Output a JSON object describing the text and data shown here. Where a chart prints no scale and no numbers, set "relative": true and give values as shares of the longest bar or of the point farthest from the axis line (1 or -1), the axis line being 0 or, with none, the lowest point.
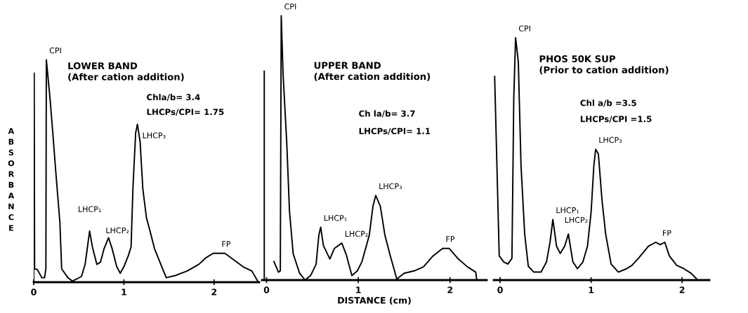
{
  "chart_data": [
    {
      "type": "line",
      "relative": true,
      "title": "LOWER BAND\n(After cation addition)",
      "ylabel": "ABSORBANCE",
      "xlim": [
        0,
        2.5
      ],
      "xticks": [
        0,
        1,
        2
      ],
      "grid": false,
      "series": [
        {
          "color": "#000000",
          "x": [
            0.0,
            0.005,
            0.01,
            0.04,
            0.09,
            0.12,
            0.135,
            0.14,
            0.18,
            0.21,
            0.25,
            0.29,
            0.31,
            0.38,
            0.43,
            0.48,
            0.53,
            0.57,
            0.6,
            0.62,
            0.65,
            0.7,
            0.74,
            0.78,
            0.83,
            0.87,
            0.92,
            0.96,
            1.0,
            1.05,
            1.08,
            1.1,
            1.13,
            1.15,
            1.18,
            1.21,
            1.25,
            1.29,
            1.34,
            1.42,
            1.47,
            1.57,
            1.7,
            1.83,
            1.91,
            1.99,
            2.12,
            2.22,
            2.32,
            2.42,
            2.49
          ],
          "values": [
            0,
            0.94,
            0.06,
            0.057,
            0.02,
            0.02,
            0.06,
            1.0,
            0.83,
            0.68,
            0.47,
            0.27,
            0.06,
            0.02,
            0.005,
            0.015,
            0.026,
            0.08,
            0.17,
            0.23,
            0.16,
            0.08,
            0.09,
            0.15,
            0.2,
            0.15,
            0.07,
            0.04,
            0.07,
            0.12,
            0.16,
            0.42,
            0.67,
            0.71,
            0.63,
            0.42,
            0.29,
            0.23,
            0.15,
            0.07,
            0.02,
            0.03,
            0.05,
            0.08,
            0.11,
            0.13,
            0.13,
            0.1,
            0.07,
            0.05,
            0.0
          ]
        }
      ],
      "annotations": [
        {
          "text": "CPI",
          "x": 0.14,
          "y": 1.0
        },
        {
          "text": "LHCP₁",
          "x": 0.62,
          "y": 0.23
        },
        {
          "text": "LHCP₂",
          "x": 0.83,
          "y": 0.2
        },
        {
          "text": "LHCP₃",
          "x": 1.15,
          "y": 0.71
        },
        {
          "text": "FP",
          "x": 2.05,
          "y": 0.13
        },
        "Chla/b= 3.4",
        "LHCPs/CPI= 1.75"
      ]
    },
    {
      "type": "line",
      "relative": true,
      "title": "UPPER BAND\n(After cation addition)",
      "xlabel": "DISTANCE (cm)",
      "xlim": [
        -0.05,
        2.4
      ],
      "xticks": [
        0,
        1,
        2
      ],
      "grid": false,
      "series": [
        {
          "color": "#000000",
          "x": [
            -0.025,
            -0.025,
            0.05,
            0.08,
            0.13,
            0.15,
            0.16,
            0.18,
            0.22,
            0.25,
            0.29,
            0.36,
            0.42,
            0.48,
            0.54,
            0.57,
            0.59,
            0.62,
            0.69,
            0.74,
            0.82,
            0.87,
            0.93,
            0.99,
            1.04,
            1.12,
            1.16,
            1.19,
            1.24,
            1.29,
            1.35,
            1.42,
            1.5,
            1.61,
            1.71,
            1.81,
            1.92,
            1.99,
            2.09,
            2.19,
            2.28,
            2.29
          ],
          "values": [
            0,
            0.79,
            null,
            0.07,
            0.03,
            0.035,
            1.0,
            0.78,
            0.52,
            0.26,
            0.1,
            0.026,
            0.0,
            0.017,
            0.06,
            0.17,
            0.2,
            0.13,
            0.08,
            0.12,
            0.14,
            0.095,
            0.017,
            0.035,
            0.07,
            0.17,
            0.28,
            0.32,
            0.28,
            0.17,
            0.09,
            0.004,
            0.026,
            0.035,
            0.05,
            0.09,
            0.12,
            0.12,
            0.08,
            0.05,
            0.03,
            0.004
          ]
        }
      ],
      "annotations": [
        {
          "text": "CPI",
          "x": 0.16,
          "y": 1.0
        },
        {
          "text": "LHCP₁",
          "x": 0.59,
          "y": 0.2
        },
        {
          "text": "LHCP₂",
          "x": 0.82,
          "y": 0.14
        },
        {
          "text": "LHCP₃",
          "x": 1.19,
          "y": 0.32
        },
        {
          "text": "FP",
          "x": 1.92,
          "y": 0.12
        },
        "Ch la/b= 3.7",
        "LHCPs/CPI= 1.1"
      ]
    },
    {
      "type": "line",
      "relative": true,
      "title": "PHOS 50K SUP\n(Prior to cation addition)",
      "xlim": [
        -0.07,
        2.3
      ],
      "xticks": [
        0,
        1,
        2
      ],
      "grid": false,
      "series": [
        {
          "color": "#000000",
          "x": [
            -0.06,
            -0.01,
            0.04,
            0.085,
            0.13,
            0.15,
            0.17,
            0.2,
            0.23,
            0.27,
            0.31,
            0.37,
            0.45,
            0.51,
            0.55,
            0.58,
            0.62,
            0.66,
            0.71,
            0.75,
            0.8,
            0.85,
            0.91,
            0.96,
            1.0,
            1.03,
            1.05,
            1.08,
            1.12,
            1.16,
            1.22,
            1.3,
            1.39,
            1.45,
            1.53,
            1.63,
            1.71,
            1.76,
            1.81,
            1.86,
            1.94,
            2.02,
            2.1,
            2.16
          ],
          "values": [
            0.84,
            0.1,
            0.075,
            0.066,
            0.09,
            0.75,
            1.0,
            0.9,
            0.47,
            0.19,
            0.057,
            0.033,
            0.033,
            0.075,
            0.16,
            0.25,
            0.14,
            0.11,
            0.14,
            0.19,
            0.075,
            0.047,
            0.075,
            0.14,
            0.28,
            0.47,
            0.54,
            0.52,
            0.33,
            0.19,
            0.066,
            0.033,
            0.047,
            0.061,
            0.094,
            0.14,
            0.156,
            0.146,
            0.156,
            0.1,
            0.061,
            0.047,
            0.028,
            0.005
          ]
        }
      ],
      "annotations": [
        {
          "text": "CPI",
          "x": 0.17,
          "y": 1.0
        },
        {
          "text": "LHCP₁",
          "x": 0.58,
          "y": 0.25
        },
        {
          "text": "LHCP₂",
          "x": 0.75,
          "y": 0.19
        },
        {
          "text": "LHCP₃",
          "x": 1.05,
          "y": 0.54
        },
        {
          "text": "FP",
          "x": 1.75,
          "y": 0.156
        },
        "Chl a/b =3.5",
        "LHCPs/CPI =1.5"
      ]
    }
  ]
}
